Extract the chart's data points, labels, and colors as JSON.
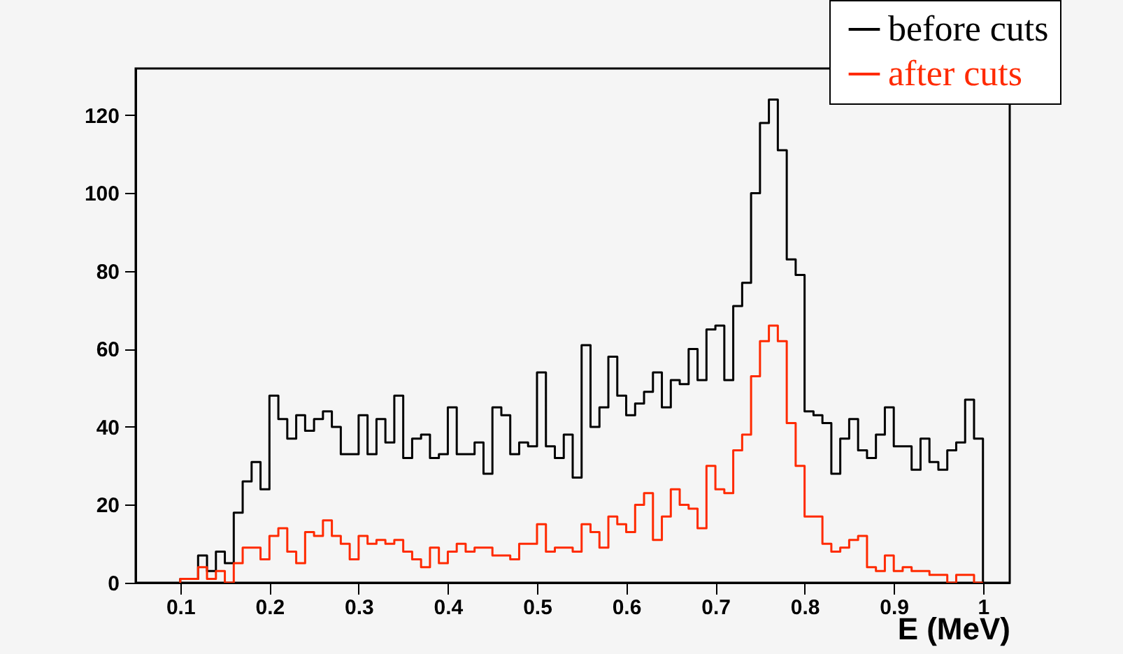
{
  "chart_data": {
    "type": "histogram",
    "xlabel": "E (MeV)",
    "legend": "top right",
    "grid": false,
    "xlim": [
      0.05,
      1.03
    ],
    "ylim": [
      0,
      132
    ],
    "xticks": [
      0.1,
      0.2,
      0.3,
      0.4,
      0.5,
      0.6,
      0.7,
      0.8,
      0.9,
      1
    ],
    "yticks": [
      0,
      20,
      40,
      60,
      80,
      100,
      120
    ],
    "bins": [
      0.1,
      0.11,
      0.12,
      0.13,
      0.14,
      0.15,
      0.16,
      0.17,
      0.18,
      0.19,
      0.2,
      0.21,
      0.22,
      0.23,
      0.24,
      0.25,
      0.26,
      0.27,
      0.28,
      0.29,
      0.3,
      0.31,
      0.32,
      0.33,
      0.34,
      0.35,
      0.36,
      0.37,
      0.38,
      0.39,
      0.4,
      0.41,
      0.42,
      0.43,
      0.44,
      0.45,
      0.46,
      0.47,
      0.48,
      0.49,
      0.5,
      0.51,
      0.52,
      0.53,
      0.54,
      0.55,
      0.56,
      0.57,
      0.58,
      0.59,
      0.6,
      0.61,
      0.62,
      0.63,
      0.64,
      0.65,
      0.66,
      0.67,
      0.68,
      0.69,
      0.7,
      0.71,
      0.72,
      0.73,
      0.74,
      0.75,
      0.76,
      0.77,
      0.78,
      0.79,
      0.8,
      0.81,
      0.82,
      0.83,
      0.84,
      0.85,
      0.86,
      0.87,
      0.88,
      0.89,
      0.9,
      0.91,
      0.92,
      0.93,
      0.94,
      0.95,
      0.96,
      0.97,
      0.98,
      0.99,
      1
    ],
    "series": [
      {
        "name": "before cuts",
        "color": "#000000",
        "values": [
          1,
          1,
          7,
          3,
          8,
          5,
          18,
          26,
          31,
          24,
          48,
          42,
          37,
          43,
          39,
          42,
          44,
          40,
          33,
          33,
          43,
          33,
          42,
          36,
          48,
          32,
          37,
          38,
          32,
          33,
          45,
          33,
          33,
          36,
          28,
          45,
          43,
          33,
          36,
          35,
          54,
          35,
          32,
          38,
          27,
          61,
          40,
          45,
          58,
          48,
          43,
          46,
          49,
          54,
          45,
          52,
          51,
          60,
          52,
          65,
          66,
          52,
          71,
          77,
          100,
          118,
          124,
          111,
          83,
          79,
          44,
          43,
          41,
          28,
          37,
          42,
          34,
          32,
          38,
          45,
          35,
          35,
          29,
          37,
          31,
          29,
          34,
          36,
          47,
          37
        ]
      },
      {
        "name": "after cuts",
        "color": "#ff2a00",
        "values": [
          1,
          1,
          4,
          1,
          3,
          0,
          5,
          9,
          9,
          6,
          12,
          14,
          8,
          5,
          13,
          12,
          16,
          12,
          10,
          6,
          12,
          10,
          11,
          10,
          11,
          8,
          6,
          4,
          9,
          5,
          8,
          10,
          8,
          9,
          9,
          7,
          7,
          6,
          10,
          10,
          15,
          8,
          9,
          9,
          8,
          15,
          13,
          9,
          17,
          15,
          13,
          20,
          23,
          11,
          17,
          24,
          20,
          19,
          14,
          30,
          24,
          23,
          34,
          38,
          53,
          62,
          66,
          62,
          41,
          30,
          17,
          17,
          10,
          8,
          9,
          11,
          12,
          4,
          3,
          7,
          3,
          4,
          3,
          3,
          2,
          2,
          0,
          2,
          2,
          0
        ]
      }
    ]
  }
}
